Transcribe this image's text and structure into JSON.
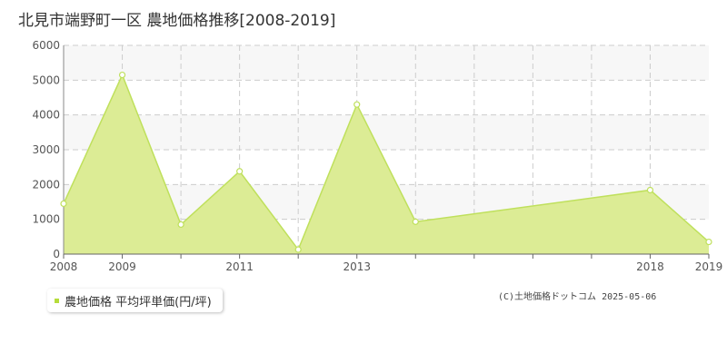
{
  "chart_data": {
    "type": "area",
    "title": "北見市端野町一区 農地価格推移[2008-2019]",
    "xlabel": "",
    "ylabel": "",
    "x": [
      2008,
      2009,
      2010,
      2011,
      2012,
      2013,
      2014,
      2015,
      2016,
      2017,
      2018,
      2019
    ],
    "x_tick_labels": [
      "2008",
      "2009",
      "2011",
      "2013",
      "2018",
      "2019"
    ],
    "x_tick_values": [
      2008,
      2009,
      2011,
      2013,
      2018,
      2019
    ],
    "xlim": [
      2008,
      2019
    ],
    "ylim": [
      0,
      6000
    ],
    "y_ticks": [
      0,
      1000,
      2000,
      3000,
      4000,
      5000,
      6000
    ],
    "grid": true,
    "legend_position": "bottom-left",
    "series": [
      {
        "name": "農地価格 平均坪単価(円/坪)",
        "points": [
          {
            "x": 2008,
            "y": 1450
          },
          {
            "x": 2009,
            "y": 5150
          },
          {
            "x": 2010,
            "y": 850
          },
          {
            "x": 2011,
            "y": 2380
          },
          {
            "x": 2012,
            "y": 130
          },
          {
            "x": 2013,
            "y": 4300
          },
          {
            "x": 2014,
            "y": 930
          },
          {
            "x": 2018,
            "y": 1840
          },
          {
            "x": 2019,
            "y": 350
          }
        ]
      }
    ]
  },
  "colors": {
    "fill": "#dcec95",
    "line": "#bfe05c",
    "grid": "#cccccc",
    "band": "#f7f7f7",
    "marker_fill": "#ffffff",
    "legend_swatch": "#b6dc3a"
  },
  "legend": {
    "label": "農地価格 平均坪単価(円/坪)"
  },
  "copyright": "(C)土地価格ドットコム 2025-05-06"
}
